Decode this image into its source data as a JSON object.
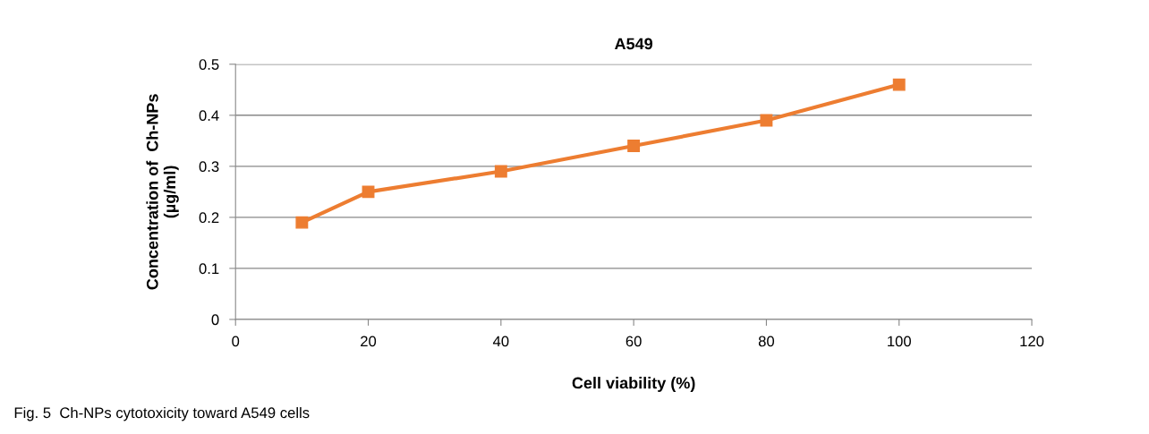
{
  "chart_data": {
    "type": "line",
    "title": "A549",
    "xlabel": "Cell viability (%)",
    "ylabel": "Concentration of  Ch-NPs\n(µg/ml)",
    "x": [
      10,
      20,
      40,
      60,
      80,
      100
    ],
    "series": [
      {
        "color": "#ed7d31",
        "values": [
          0.19,
          0.25,
          0.29,
          0.34,
          0.39,
          0.46
        ]
      }
    ],
    "xlim": [
      0,
      120
    ],
    "xticks": [
      0,
      20,
      40,
      60,
      80,
      100,
      120
    ],
    "ylim": [
      0,
      0.5
    ],
    "yticks": [
      0,
      0.1,
      0.2,
      0.3,
      0.4,
      0.5
    ],
    "grid": "y",
    "marker": "square",
    "line_style": "solid",
    "annotations": [
      "Fig. 5  Ch-NPs cytotoxicity toward A549 cells"
    ]
  }
}
